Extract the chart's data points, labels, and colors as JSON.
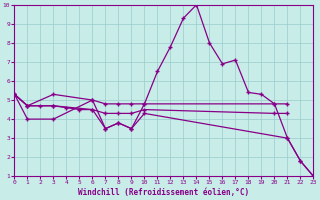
{
  "bg_color": "#c8ece8",
  "line_color": "#880088",
  "grid_color": "#99cccc",
  "xlabel": "Windchill (Refroidissement éolien,°C)",
  "xlim": [
    0,
    23
  ],
  "ylim": [
    1,
    10
  ],
  "xticks": [
    0,
    1,
    2,
    3,
    4,
    5,
    6,
    7,
    8,
    9,
    10,
    11,
    12,
    13,
    14,
    15,
    16,
    17,
    18,
    19,
    20,
    21,
    22,
    23
  ],
  "yticks": [
    1,
    2,
    3,
    4,
    5,
    6,
    7,
    8,
    9,
    10
  ],
  "lines": [
    {
      "x": [
        0,
        1,
        3,
        6,
        7,
        8,
        9,
        10,
        11,
        12,
        13,
        14,
        15,
        16,
        17,
        18,
        19,
        20,
        21,
        22,
        23
      ],
      "y": [
        5.3,
        4.0,
        4.0,
        5.0,
        3.5,
        3.8,
        3.5,
        4.8,
        6.5,
        7.8,
        9.3,
        10.0,
        8.0,
        6.9,
        7.1,
        5.4,
        5.3,
        4.8,
        3.0,
        1.8,
        1.0
      ]
    },
    {
      "x": [
        0,
        1,
        3,
        6,
        7,
        8,
        9,
        10,
        20,
        21
      ],
      "y": [
        5.3,
        4.7,
        5.3,
        5.0,
        4.8,
        4.8,
        4.8,
        4.8,
        4.8,
        4.8
      ]
    },
    {
      "x": [
        0,
        1,
        2,
        3,
        4,
        5,
        6,
        7,
        8,
        9,
        10,
        20,
        21
      ],
      "y": [
        5.3,
        4.7,
        4.7,
        4.7,
        4.6,
        4.5,
        4.5,
        4.3,
        4.3,
        4.3,
        4.5,
        4.3,
        4.3
      ]
    },
    {
      "x": [
        0,
        1,
        3,
        6,
        7,
        8,
        9,
        10,
        21,
        22,
        23
      ],
      "y": [
        5.3,
        4.7,
        4.7,
        4.5,
        3.5,
        3.8,
        3.5,
        4.3,
        3.0,
        1.8,
        1.0
      ]
    }
  ]
}
